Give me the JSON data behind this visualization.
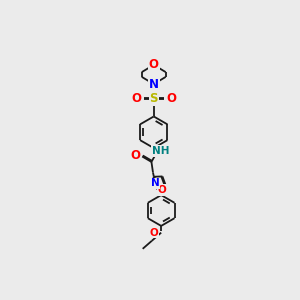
{
  "bg_color": "#ebebeb",
  "bond_color": "#1a1a1a",
  "atom_colors": {
    "O": "#ff0000",
    "N": "#0000ff",
    "S": "#b8b800",
    "NH": "#008080",
    "C": "#1a1a1a"
  },
  "lw": 1.3,
  "fs_large": 8.5,
  "fs_small": 7.5
}
